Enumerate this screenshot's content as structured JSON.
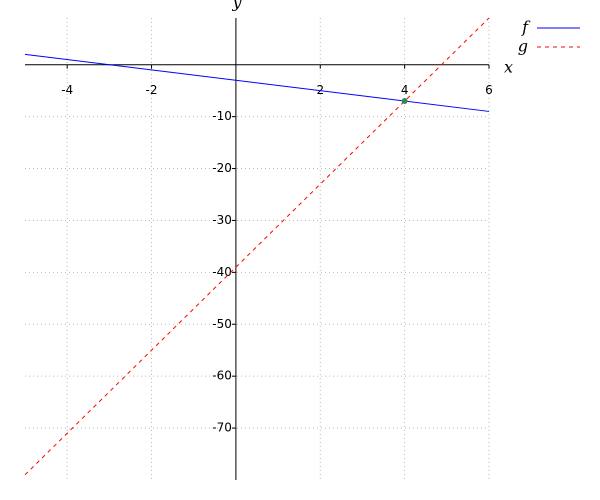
{
  "chart_data": {
    "type": "line",
    "x_label": "x",
    "y_label": "y",
    "xlim": [
      -5,
      6
    ],
    "ylim": [
      -80,
      9
    ],
    "xticks": [
      -4,
      -2,
      2,
      4,
      6
    ],
    "yticks": [
      -10,
      -20,
      -30,
      -40,
      -50,
      -60,
      -70
    ],
    "grid": true,
    "legend": "upper right",
    "series": [
      {
        "name": "f",
        "color": "#0000ff",
        "dash": false,
        "x": [
          -5,
          6
        ],
        "values": [
          2,
          -9
        ]
      },
      {
        "name": "g",
        "color": "#ff0000",
        "dash": true,
        "x": [
          -5,
          6
        ],
        "values": [
          -79,
          9
        ]
      }
    ],
    "markers": [
      {
        "x": 4,
        "y": -7,
        "color": "#2e8b57"
      }
    ]
  }
}
